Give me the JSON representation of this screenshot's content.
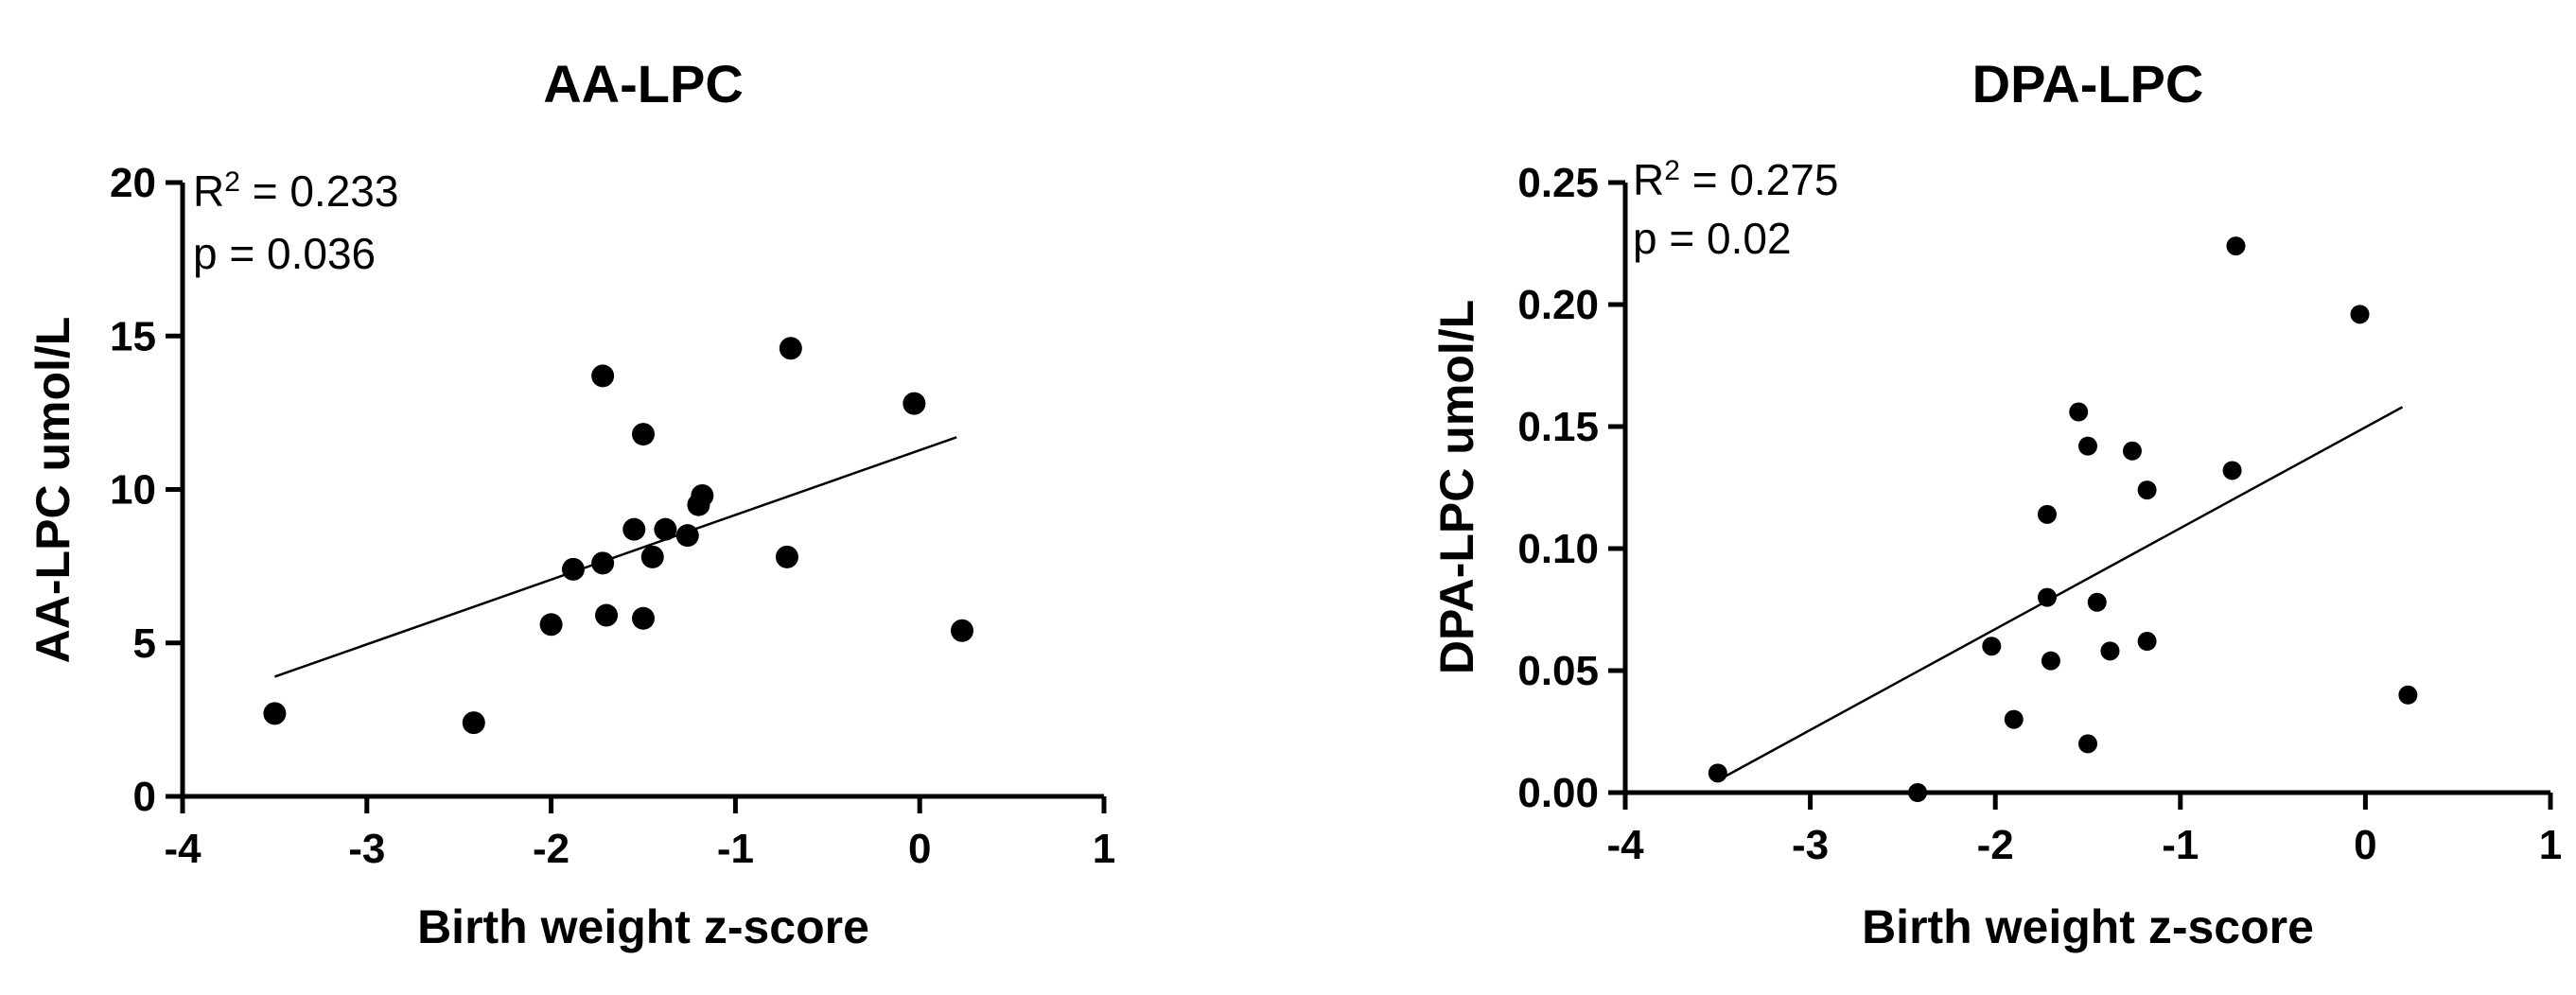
{
  "chart_data": [
    {
      "type": "scatter",
      "title": "AA-LPC",
      "xlabel": "Birth weight z-score",
      "ylabel": "AA-LPC umol/L",
      "xlim": [
        -4,
        1
      ],
      "ylim": [
        0,
        20
      ],
      "xticks": [
        "-4",
        "-3",
        "-2",
        "-1",
        "0",
        "1"
      ],
      "yticks": [
        "0",
        "5",
        "10",
        "15",
        "20"
      ],
      "r2_prefix": "R",
      "r2_sup": "2",
      "r2_value": " = 0.233",
      "p_text": "p = 0.036",
      "points": [
        {
          "x": -3.5,
          "y": 2.7
        },
        {
          "x": -2.42,
          "y": 2.4
        },
        {
          "x": -2.0,
          "y": 5.6
        },
        {
          "x": -1.88,
          "y": 7.4
        },
        {
          "x": -1.72,
          "y": 13.7
        },
        {
          "x": -1.72,
          "y": 7.6
        },
        {
          "x": -1.7,
          "y": 5.9
        },
        {
          "x": -1.55,
          "y": 8.7
        },
        {
          "x": -1.5,
          "y": 11.8
        },
        {
          "x": -1.5,
          "y": 5.8
        },
        {
          "x": -1.45,
          "y": 7.8
        },
        {
          "x": -1.38,
          "y": 8.7
        },
        {
          "x": -1.26,
          "y": 8.5
        },
        {
          "x": -1.2,
          "y": 9.5
        },
        {
          "x": -1.18,
          "y": 9.8
        },
        {
          "x": -0.72,
          "y": 7.8
        },
        {
          "x": -0.7,
          "y": 14.6
        },
        {
          "x": -0.03,
          "y": 12.8
        },
        {
          "x": 0.23,
          "y": 5.4
        }
      ],
      "fit": {
        "x": [
          -3.5,
          0.2
        ],
        "y": [
          3.9,
          11.7
        ]
      }
    },
    {
      "type": "scatter",
      "title": "DPA-LPC",
      "xlabel": "Birth weight z-score",
      "ylabel": "DPA-LPC umol/L",
      "xlim": [
        -4,
        1
      ],
      "ylim": [
        0,
        0.25
      ],
      "xticks": [
        "-4",
        "-3",
        "-2",
        "-1",
        "0",
        "1"
      ],
      "yticks": [
        "0.00",
        "0.05",
        "0.10",
        "0.15",
        "0.20",
        "0.25"
      ],
      "r2_prefix": "R",
      "r2_sup": "2",
      "r2_value": " = 0.275",
      "p_text": "p = 0.02",
      "points": [
        {
          "x": -3.5,
          "y": 0.008
        },
        {
          "x": -2.42,
          "y": 0.0
        },
        {
          "x": -2.02,
          "y": 0.06
        },
        {
          "x": -1.9,
          "y": 0.03
        },
        {
          "x": -1.72,
          "y": 0.114
        },
        {
          "x": -1.72,
          "y": 0.08
        },
        {
          "x": -1.7,
          "y": 0.054
        },
        {
          "x": -1.55,
          "y": 0.156
        },
        {
          "x": -1.5,
          "y": 0.142
        },
        {
          "x": -1.5,
          "y": 0.02
        },
        {
          "x": -1.45,
          "y": 0.078
        },
        {
          "x": -1.38,
          "y": 0.058
        },
        {
          "x": -1.26,
          "y": 0.14
        },
        {
          "x": -1.18,
          "y": 0.124
        },
        {
          "x": -1.18,
          "y": 0.062
        },
        {
          "x": -0.72,
          "y": 0.132
        },
        {
          "x": -0.7,
          "y": 0.224
        },
        {
          "x": -0.03,
          "y": 0.196
        },
        {
          "x": 0.23,
          "y": 0.04
        }
      ],
      "fit": {
        "x": [
          -3.5,
          0.2
        ],
        "y": [
          0.005,
          0.158
        ]
      }
    }
  ]
}
